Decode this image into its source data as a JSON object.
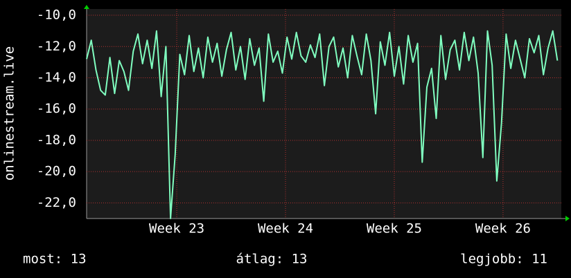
{
  "chart_data": {
    "type": "line",
    "y_label": "onlinestream.live",
    "x": [
      0,
      0.3,
      0.6,
      0.9,
      1.2,
      1.5,
      1.8,
      2.1,
      2.4,
      2.7,
      3.0,
      3.3,
      3.6,
      3.9,
      4.2,
      4.5,
      4.8,
      5.1,
      5.4,
      5.7,
      6.0,
      6.3,
      6.6,
      6.9,
      7.2,
      7.5,
      7.8,
      8.1,
      8.4,
      8.7,
      9.0,
      9.3,
      9.6,
      9.9,
      10.2,
      10.5,
      10.8,
      11.1,
      11.4,
      11.7,
      12.0,
      12.3,
      12.6,
      12.9,
      13.2,
      13.5,
      13.8,
      14.1,
      14.4,
      14.7,
      15.0,
      15.3,
      15.6,
      15.9,
      16.2,
      16.5,
      16.8,
      17.1,
      17.4,
      17.7,
      18.0,
      18.3,
      18.6,
      18.9,
      19.2,
      19.5,
      19.8,
      20.1,
      20.4,
      20.7,
      21.0,
      21.3,
      21.6,
      21.9,
      22.2,
      22.5,
      22.8,
      23.1,
      23.4,
      23.7,
      24.0,
      24.3,
      24.6,
      24.9,
      25.2,
      25.5,
      25.8,
      26.1,
      26.4,
      26.7,
      27.0,
      27.3,
      27.6,
      27.9,
      28.2,
      28.5,
      28.8,
      29.1,
      29.4,
      29.7,
      30.0,
      30.3
    ],
    "series": [
      {
        "color": "#80ffc0",
        "values": [
          -12.8,
          -11.6,
          -13.5,
          -14.8,
          -15.1,
          -12.7,
          -15.0,
          -12.9,
          -13.6,
          -14.8,
          -12.3,
          -11.2,
          -13.1,
          -11.6,
          -13.4,
          -11.0,
          -15.2,
          -12.0,
          -23.0,
          -18.9,
          -12.5,
          -13.8,
          -11.3,
          -13.6,
          -12.1,
          -14.0,
          -11.4,
          -13.0,
          -11.8,
          -13.9,
          -12.2,
          -11.1,
          -13.5,
          -12.0,
          -14.1,
          -11.5,
          -13.2,
          -12.1,
          -15.5,
          -11.2,
          -13.0,
          -12.3,
          -13.7,
          -11.4,
          -12.8,
          -11.1,
          -12.6,
          -13.0,
          -11.9,
          -12.7,
          -11.2,
          -14.5,
          -12.0,
          -11.4,
          -13.3,
          -12.1,
          -14.0,
          -11.3,
          -12.6,
          -13.8,
          -11.2,
          -12.9,
          -16.3,
          -11.7,
          -13.2,
          -11.1,
          -13.9,
          -12.0,
          -14.4,
          -11.3,
          -13.0,
          -11.8,
          -19.4,
          -14.6,
          -13.4,
          -16.6,
          -11.3,
          -14.1,
          -12.2,
          -11.6,
          -13.5,
          -11.1,
          -12.9,
          -11.4,
          -13.7,
          -19.1,
          -11.0,
          -13.2,
          -20.6,
          -16.9,
          -11.2,
          -13.4,
          -11.6,
          -12.8,
          -14.0,
          -11.5,
          -12.4,
          -11.3,
          -13.8,
          -12.1,
          -11.0,
          -12.9
        ]
      }
    ],
    "xlim": [
      0,
      30.55
    ],
    "xticks": [
      {
        "value": 5.8,
        "label": "Week 23"
      },
      {
        "value": 12.8,
        "label": "Week 24"
      },
      {
        "value": 19.8,
        "label": "Week 25"
      },
      {
        "value": 26.8,
        "label": "Week 26"
      }
    ],
    "ylim": [
      -23.0,
      -9.6
    ],
    "yticks": [
      {
        "value": -22,
        "label": "-22,0"
      },
      {
        "value": -20,
        "label": "-20,0"
      },
      {
        "value": -18,
        "label": "-18,0"
      },
      {
        "value": -16,
        "label": "-16,0"
      },
      {
        "value": -14,
        "label": "-14,0"
      },
      {
        "value": -12,
        "label": "-12,0"
      },
      {
        "value": -10,
        "label": "-10,0"
      }
    ],
    "grid": true,
    "footer": [
      "most: 13",
      "átlag: 13",
      "legjobb: 11"
    ]
  }
}
